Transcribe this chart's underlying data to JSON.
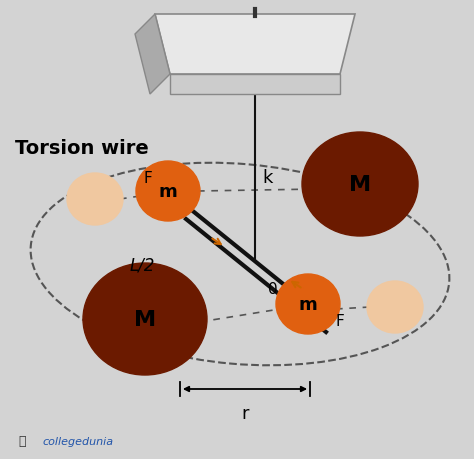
{
  "bg_color": "#d3d3d3",
  "torsion_wire_label": "Torsion wire",
  "k_label": "k",
  "L2_label": "L/2",
  "r_label": "r",
  "zero_label": "0",
  "F_label": "F",
  "m_label": "m",
  "M_label": "M",
  "color_m": "#e06010",
  "color_M": "#6b1a00",
  "color_small": "#f0c8a0",
  "color_text": "#000000",
  "color_logo_text": "#2255aa",
  "collegedunia_label": "collegedunia",
  "plate_color": "#e8e8e8",
  "plate_edge_color": "#888888",
  "plate_shadow": "#aaaaaa",
  "wire_color": "#111111",
  "rod_color": "#111111",
  "dash_color": "#555555",
  "arrow_color": "#cc6600"
}
